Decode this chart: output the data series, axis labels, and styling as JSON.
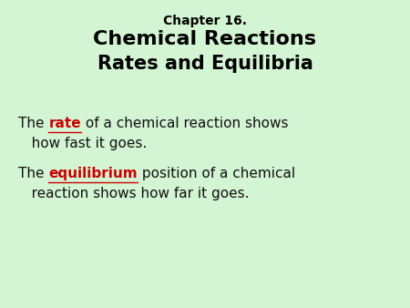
{
  "background_color": "#d4f5d4",
  "title_line1": "Chapter 16.",
  "title_line2": "Chemical Reactions",
  "title_line3": "Rates and Equilibria",
  "title1_fontsize": 10,
  "title2_fontsize": 16,
  "title3_fontsize": 15,
  "body_fontsize": 11,
  "body_color": "#111111",
  "highlight_color": "#cc0000",
  "body_parts1": [
    {
      "text": "The ",
      "color": "#111111",
      "bold": false,
      "underline": false
    },
    {
      "text": "rate",
      "color": "#cc0000",
      "bold": true,
      "underline": true
    },
    {
      "text": " of a chemical reaction shows",
      "color": "#111111",
      "bold": false,
      "underline": false
    }
  ],
  "body_cont1": "   how fast it goes.",
  "body_parts2": [
    {
      "text": "The ",
      "color": "#111111",
      "bold": false,
      "underline": false
    },
    {
      "text": "equilibrium",
      "color": "#cc0000",
      "bold": true,
      "underline": true
    },
    {
      "text": " position of a chemical",
      "color": "#111111",
      "bold": false,
      "underline": false
    }
  ],
  "body_cont2": "   reaction shows how far it goes."
}
